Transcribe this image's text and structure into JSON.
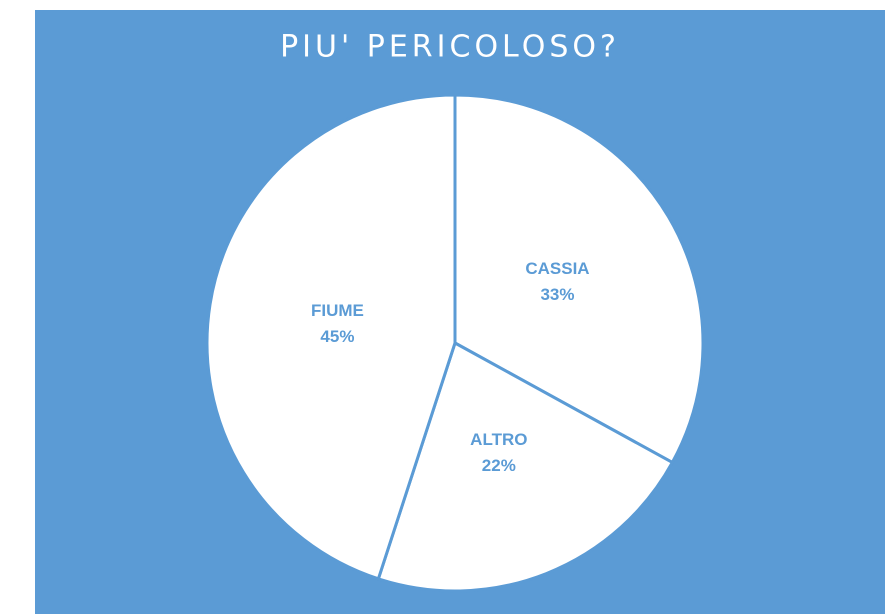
{
  "chart_data": {
    "type": "pie",
    "title": "PIU' PERICOLOSO?",
    "categories": [
      "CASSIA",
      "ALTRO",
      "FIUME"
    ],
    "values": [
      33,
      22,
      45
    ],
    "value_labels": [
      "33%",
      "22%",
      "45%"
    ],
    "color": "#ffffff",
    "background": "#5b9bd5",
    "label_color": "#5b9bd5"
  }
}
